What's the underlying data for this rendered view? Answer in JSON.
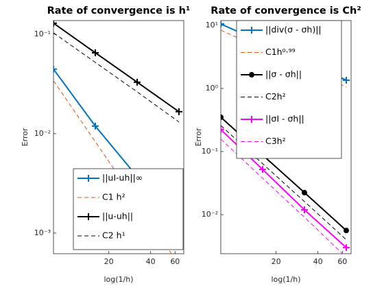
{
  "chart_data": [
    {
      "type": "line",
      "title": "Rate of convergence is h¹",
      "xlabel": "log(1/h)",
      "ylabel": "Error",
      "x": [
        8,
        16,
        32,
        64
      ],
      "xlim": [
        8,
        69.3
      ],
      "xticks": [
        20,
        40,
        60
      ],
      "ylim": [
        0.00062,
        0.137
      ],
      "log_x": true,
      "log_y": true,
      "legend": "southeast",
      "yticks": [
        {
          "value": 0.001,
          "label": "10⁻³"
        },
        {
          "value": 0.01,
          "label": "10⁻²"
        },
        {
          "value": 0.1,
          "label": "10⁻¹"
        }
      ],
      "series": [
        {
          "name": "||uI-uh||∞",
          "color": "#0072bd",
          "dashed": false,
          "marker": "plus",
          "values": [
            0.0445,
            0.0119,
            0.0037,
            0.00079
          ]
        },
        {
          "name": "C1 h²",
          "color": "#d95319",
          "dashed": true,
          "marker": null,
          "values": [
            0.034,
            0.0083,
            0.002,
            0.00048
          ]
        },
        {
          "name": "||u-uh||",
          "color": "#000000",
          "dashed": false,
          "marker": "plus",
          "values": [
            0.129,
            0.065,
            0.0329,
            0.0166
          ]
        },
        {
          "name": "C2 h¹",
          "color": "#000000",
          "dashed": true,
          "marker": null,
          "values": [
            0.103,
            0.052,
            0.0263,
            0.0131
          ]
        }
      ]
    },
    {
      "type": "line",
      "title": "Rate of convergence is Ch²",
      "xlabel": "log(1/h)",
      "ylabel": "Error",
      "x": [
        8,
        16,
        32,
        64
      ],
      "xlim": [
        8,
        69.3
      ],
      "xticks": [
        20,
        40,
        60
      ],
      "ylim": [
        0.0024,
        11.9
      ],
      "log_x": true,
      "log_y": true,
      "legend": "northeast",
      "yticks": [
        {
          "value": 0.01,
          "label": "10⁻²"
        },
        {
          "value": 0.1,
          "label": "10⁻¹"
        },
        {
          "value": 1,
          "label": "10⁰"
        },
        {
          "value": 10,
          "label": "10¹"
        }
      ],
      "series": [
        {
          "name": "||div(σ - σh)||",
          "color": "#0072bd",
          "dashed": false,
          "marker": "plus",
          "values": [
            10.5,
            5.35,
            2.72,
            1.35
          ]
        },
        {
          "name": "C1h⁰·⁹⁹",
          "color": "#d95319",
          "dashed": true,
          "marker": null,
          "values": [
            8.4,
            4.2,
            2.1,
            1.05
          ]
        },
        {
          "name": "||σ - σh||",
          "color": "#000000",
          "dashed": false,
          "marker": "dot",
          "values": [
            0.35,
            0.088,
            0.0223,
            0.0056
          ]
        },
        {
          "name": "C2h²",
          "color": "#000000",
          "dashed": true,
          "marker": null,
          "values": [
            0.259,
            0.064,
            0.0161,
            0.004
          ]
        },
        {
          "name": "||σI - σh||",
          "color": "#ff00ff",
          "dashed": false,
          "marker": "plus",
          "values": [
            0.223,
            0.052,
            0.0119,
            0.003
          ]
        },
        {
          "name": "C3h²",
          "color": "#ff00ff",
          "dashed": true,
          "marker": null,
          "values": [
            0.157,
            0.0377,
            0.0091,
            0.0021
          ]
        }
      ]
    }
  ]
}
